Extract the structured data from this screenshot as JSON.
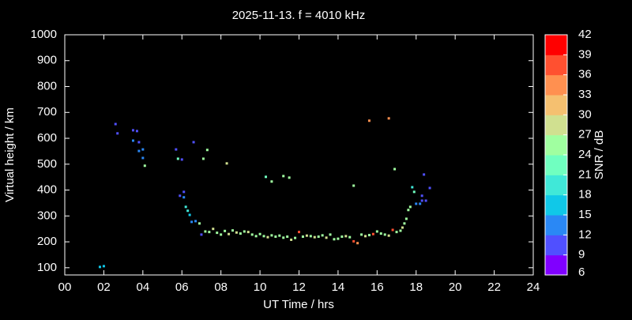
{
  "chart_data": {
    "type": "scatter",
    "title": "2025-11-13. f = 4010 kHz",
    "x_label": "UT Time / hrs",
    "y_label": "Virtual height / km",
    "xlim": [
      0,
      24
    ],
    "ylim": [
      72,
      1000
    ],
    "xticks": [
      {
        "value": 0,
        "label": "00"
      },
      {
        "value": 2,
        "label": "02"
      },
      {
        "value": 4,
        "label": "04"
      },
      {
        "value": 6,
        "label": "06"
      },
      {
        "value": 8,
        "label": "08"
      },
      10,
      12,
      14,
      16,
      18,
      20,
      22,
      24
    ],
    "yticks": [
      100,
      200,
      300,
      400,
      500,
      600,
      700,
      800,
      900,
      1000
    ],
    "colorbar": {
      "label": "SNR / dB",
      "lim": [
        6,
        42
      ],
      "ticks": [
        6,
        9,
        12,
        15,
        18,
        21,
        24,
        27,
        30,
        33,
        36,
        39,
        42
      ],
      "colors": [
        "#8000ff",
        "#5050ff",
        "#2a88f5",
        "#10c8e8",
        "#40e8d8",
        "#70ffc0",
        "#a0ffa0",
        "#d0e090",
        "#f5c070",
        "#ff9050",
        "#ff5030",
        "#ff0000"
      ]
    },
    "series": [
      {
        "name": "SNR",
        "x": [
          1.8,
          2.0,
          2.6,
          2.7,
          3.5,
          3.7,
          3.5,
          3.8,
          3.8,
          4.0,
          4.0,
          4.1,
          5.7,
          5.8,
          6.0,
          6.6,
          7.3,
          7.1,
          8.3,
          5.9,
          6.1,
          6.1,
          6.2,
          6.3,
          6.4,
          6.5,
          6.7,
          6.9,
          7.0,
          7.2,
          7.4,
          7.6,
          7.8,
          8.0,
          8.2,
          8.4,
          8.6,
          8.8,
          9.0,
          9.2,
          9.4,
          9.6,
          9.8,
          10.0,
          10.2,
          10.4,
          10.6,
          10.8,
          11.0,
          11.2,
          11.4,
          11.6,
          11.8,
          12.0,
          12.2,
          12.4,
          12.6,
          12.8,
          13.0,
          13.2,
          13.4,
          13.6,
          13.8,
          14.0,
          14.2,
          14.4,
          14.6,
          14.8,
          15.0,
          15.2,
          15.4,
          15.6,
          15.8,
          16.0,
          16.2,
          16.4,
          16.6,
          16.8,
          17.0,
          10.3,
          10.6,
          11.2,
          11.5,
          14.8,
          15.6,
          16.6,
          16.9,
          17.2,
          17.3,
          17.4,
          17.5,
          17.6,
          17.7,
          17.8,
          17.9,
          18.0,
          18.2,
          18.3,
          18.3,
          18.4,
          18.5,
          18.7
        ],
        "values": [
          103,
          106,
          655,
          619,
          631,
          628,
          591,
          585,
          551,
          557,
          524,
          494,
          557,
          521,
          518,
          585,
          555,
          521,
          503,
          378,
          393,
          372,
          335,
          320,
          304,
          277,
          280,
          271,
          228,
          240,
          238,
          250,
          235,
          228,
          242,
          230,
          244,
          236,
          232,
          240,
          238,
          228,
          222,
          230,
          222,
          218,
          225,
          220,
          224,
          216,
          220,
          208,
          215,
          238,
          220,
          224,
          222,
          218,
          220,
          225,
          216,
          228,
          210,
          212,
          220,
          222,
          218,
          202,
          195,
          228,
          222,
          226,
          230,
          240,
          232,
          228,
          224,
          246,
          238,
          451,
          433,
          454,
          448,
          417,
          668,
          677,
          481,
          243,
          255,
          271,
          289,
          323,
          335,
          411,
          393,
          347,
          347,
          359,
          378,
          460,
          359,
          408
        ],
        "snr": [
          16,
          17,
          10,
          11,
          11,
          10,
          12,
          11,
          12,
          13,
          14,
          25,
          11,
          23,
          11,
          10,
          26,
          25,
          27,
          11,
          10,
          12,
          19,
          20,
          17,
          13,
          14,
          25,
          11,
          26,
          25,
          27,
          26,
          24,
          25,
          27,
          26,
          28,
          25,
          26,
          27,
          25,
          24,
          26,
          25,
          27,
          26,
          25,
          24,
          26,
          25,
          27,
          26,
          38,
          25,
          27,
          26,
          28,
          26,
          25,
          27,
          26,
          25,
          24,
          26,
          27,
          25,
          36,
          35,
          25,
          27,
          26,
          37,
          25,
          24,
          26,
          27,
          37,
          25,
          23,
          25,
          24,
          26,
          25,
          34,
          34,
          26,
          26,
          27,
          25,
          26,
          25,
          24,
          20,
          22,
          13,
          12,
          11,
          11,
          10,
          11,
          11
        ]
      }
    ]
  }
}
